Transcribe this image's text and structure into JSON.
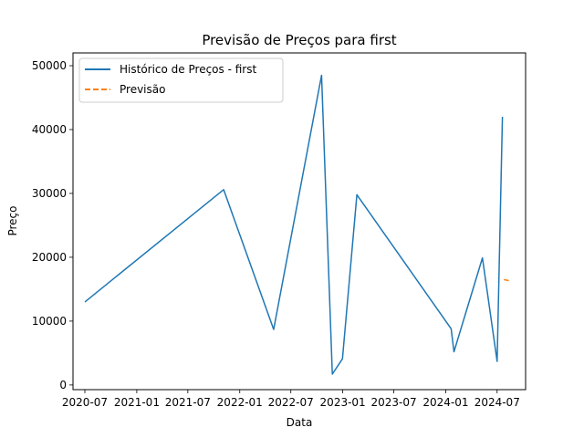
{
  "chart_data": {
    "type": "line",
    "title": "Previsão de Preços para first",
    "xlabel": "Data",
    "ylabel": "Preço",
    "xlim": [
      "2020-05-20",
      "2024-10-10"
    ],
    "ylim": [
      -730,
      52000
    ],
    "x_ticks": [
      {
        "date": "2020-07-01",
        "label": "2020-07"
      },
      {
        "date": "2021-01-01",
        "label": "2021-01"
      },
      {
        "date": "2021-07-01",
        "label": "2021-07"
      },
      {
        "date": "2022-01-01",
        "label": "2022-01"
      },
      {
        "date": "2022-07-01",
        "label": "2022-07"
      },
      {
        "date": "2023-01-01",
        "label": "2023-01"
      },
      {
        "date": "2023-07-01",
        "label": "2023-07"
      },
      {
        "date": "2024-01-01",
        "label": "2024-01"
      },
      {
        "date": "2024-07-01",
        "label": "2024-07"
      }
    ],
    "y_ticks": [
      0,
      10000,
      20000,
      30000,
      40000,
      50000
    ],
    "y_tick_labels": [
      "0",
      "10000",
      "20000",
      "30000",
      "40000",
      "50000"
    ],
    "grid": false,
    "legend_position": "top-left",
    "series": [
      {
        "name": "Histórico de Preços - first",
        "color": "#1f77b4",
        "style": "solid",
        "points": [
          {
            "x": "2020-07-01",
            "y": 13000
          },
          {
            "x": "2021-11-05",
            "y": 30600
          },
          {
            "x": "2022-05-01",
            "y": 8700
          },
          {
            "x": "2022-10-18",
            "y": 48500
          },
          {
            "x": "2022-11-25",
            "y": 1700
          },
          {
            "x": "2022-12-31",
            "y": 4100
          },
          {
            "x": "2023-02-20",
            "y": 29800
          },
          {
            "x": "2024-01-20",
            "y": 8800
          },
          {
            "x": "2024-01-30",
            "y": 5200
          },
          {
            "x": "2024-05-10",
            "y": 19900
          },
          {
            "x": "2024-07-01",
            "y": 3700
          },
          {
            "x": "2024-07-20",
            "y": 42000
          }
        ]
      },
      {
        "name": "Previsão",
        "color": "#ff7f0e",
        "style": "dashed",
        "points": [
          {
            "x": "2024-07-25",
            "y": 16500
          },
          {
            "x": "2024-08-15",
            "y": 16300
          }
        ]
      }
    ]
  }
}
